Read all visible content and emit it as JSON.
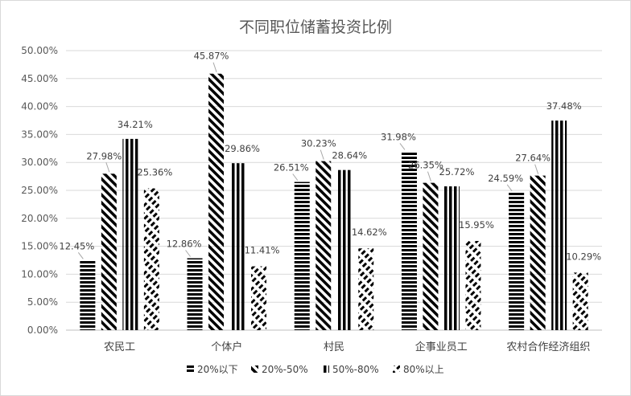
{
  "chart_data": {
    "type": "bar",
    "title": "不同职位储蓄投资比例",
    "categories": [
      "农民工",
      "个体户",
      "村民",
      "企事业员工",
      "农村合作经济组织"
    ],
    "series": [
      {
        "name": "20%以下",
        "pattern": "horizontal-stripes",
        "values": [
          12.45,
          12.86,
          26.51,
          31.98,
          24.59
        ],
        "labels": [
          "12.45%",
          "12.86%",
          "26.51%",
          "31.98%",
          "24.59%"
        ]
      },
      {
        "name": "20%-50%",
        "pattern": "diagonal-stripes",
        "values": [
          27.98,
          45.87,
          30.23,
          26.35,
          27.64
        ],
        "labels": [
          "27.98%",
          "45.87%",
          "30.23%",
          "26.35%",
          "27.64%"
        ]
      },
      {
        "name": "50%-80%",
        "pattern": "vertical-stripes",
        "values": [
          34.21,
          29.86,
          28.64,
          25.72,
          37.48
        ],
        "labels": [
          "34.21%",
          "29.86%",
          "28.64%",
          "25.72%",
          "37.48%"
        ]
      },
      {
        "name": "80%以上",
        "pattern": "dashed-diagonal",
        "values": [
          25.36,
          11.41,
          14.62,
          15.95,
          10.29
        ],
        "labels": [
          "25.36%",
          "11.41%",
          "14.62%",
          "15.95%",
          "10.29%"
        ]
      }
    ],
    "yticks": [
      "0.00%",
      "5.00%",
      "10.00%",
      "15.00%",
      "20.00%",
      "25.00%",
      "30.00%",
      "35.00%",
      "40.00%",
      "45.00%",
      "50.00%"
    ],
    "ylim": [
      0,
      50
    ],
    "grid": true,
    "legend_position": "bottom",
    "colors": {
      "bar": "#000000",
      "grid": "#d9d9d9",
      "text": "#595959"
    }
  }
}
